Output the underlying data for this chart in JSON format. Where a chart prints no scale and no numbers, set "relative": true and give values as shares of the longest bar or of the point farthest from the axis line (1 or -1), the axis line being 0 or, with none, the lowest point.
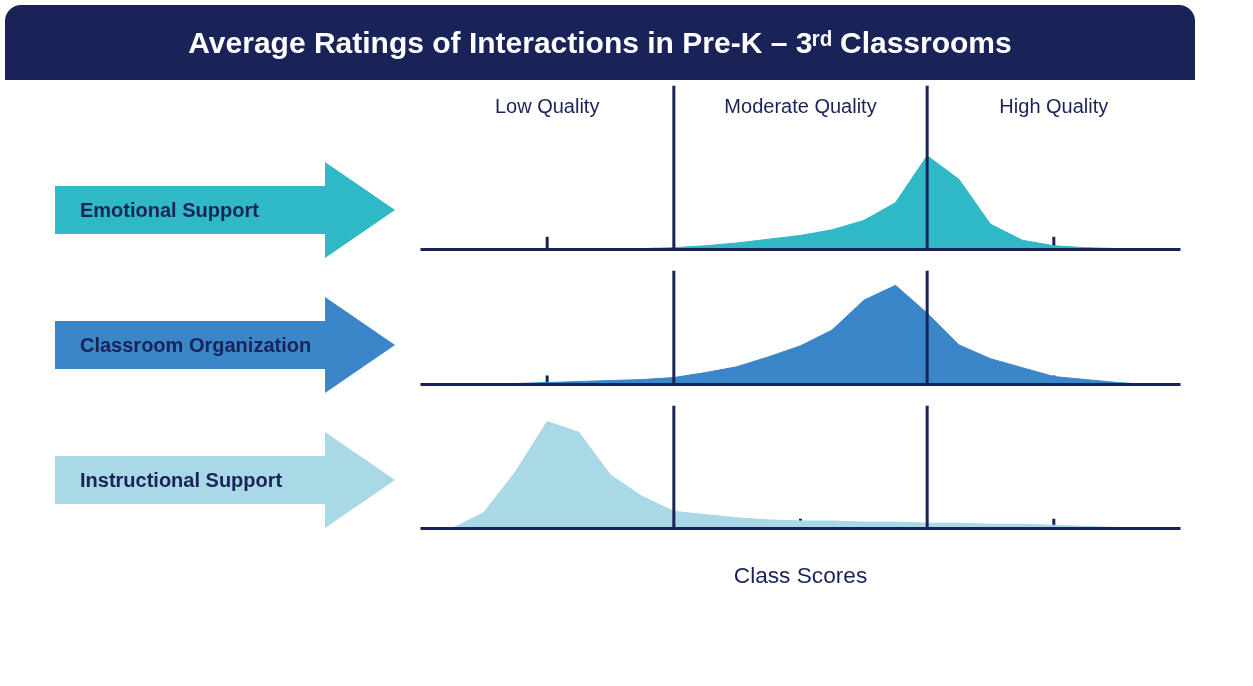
{
  "chart_data": [
    {
      "type": "area",
      "title": "Average Ratings of Interactions in Pre-K – 3ʳᵈ Classrooms",
      "relative": true,
      "categories": [
        null,
        null,
        null,
        null,
        null,
        null,
        null,
        null,
        null,
        null,
        null,
        null,
        null,
        null,
        null,
        null,
        null,
        null,
        null,
        null,
        null,
        null,
        null,
        null,
        null
      ],
      "annotations": [
        "Low Quality",
        "Moderate Quality",
        "High Quality"
      ],
      "series": [
        {
          "name": "Emotional Support",
          "color": "#2fb8c6",
          "values": [
            0,
            0,
            0,
            0,
            0,
            0,
            0.01,
            0.01,
            0.02,
            0.04,
            0.07,
            0.11,
            0.15,
            0.21,
            0.31,
            0.5,
            1.0,
            0.75,
            0.27,
            0.1,
            0.04,
            0.02,
            0.01,
            0,
            0
          ]
        }
      ]
    },
    {
      "type": "area",
      "relative": true,
      "categories": [
        null,
        null,
        null,
        null,
        null,
        null,
        null,
        null,
        null,
        null,
        null,
        null,
        null,
        null,
        null,
        null,
        null,
        null,
        null,
        null,
        null,
        null,
        null,
        null,
        null
      ],
      "series": [
        {
          "name": "Classroom Organization",
          "color": "#3a86c8",
          "values": [
            0,
            0,
            0.01,
            0.01,
            0.02,
            0.03,
            0.04,
            0.05,
            0.07,
            0.12,
            0.18,
            0.28,
            0.39,
            0.55,
            0.85,
            1.0,
            0.72,
            0.4,
            0.26,
            0.17,
            0.08,
            0.05,
            0.02,
            0,
            0
          ]
        }
      ]
    },
    {
      "type": "area",
      "xlabel": "Class Scores",
      "relative": true,
      "categories": [
        null,
        null,
        null,
        null,
        null,
        null,
        null,
        null,
        null,
        null,
        null,
        null,
        null,
        null,
        null,
        null,
        null,
        null,
        null,
        null,
        null,
        null,
        null,
        null,
        null
      ],
      "series": [
        {
          "name": "Instructional Support",
          "color": "#a9d8e6",
          "values": [
            0,
            0,
            0.15,
            0.53,
            1.0,
            0.9,
            0.5,
            0.3,
            0.16,
            0.13,
            0.1,
            0.08,
            0.07,
            0.07,
            0.06,
            0.06,
            0.05,
            0.05,
            0.04,
            0.04,
            0.03,
            0.02,
            0.01,
            0,
            0
          ]
        }
      ]
    }
  ]
}
